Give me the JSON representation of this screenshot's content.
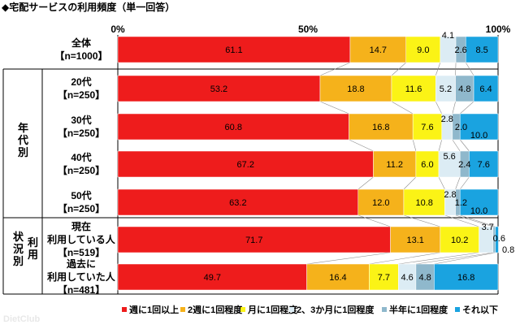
{
  "chart_data": {
    "type": "bar",
    "orientation": "horizontal",
    "stacked": true,
    "title": "◆宅配サービスの利用頻度（単一回答）",
    "xlim": [
      0,
      100
    ],
    "x_ticks": [
      "0%",
      "50%",
      "100%"
    ],
    "grid": false,
    "legend_position": "bottom",
    "groups": [
      {
        "label": "年代別"
      },
      {
        "label": "利用状況別"
      }
    ],
    "categories": [
      {
        "line1": "全体",
        "line2": "【n=1000】"
      },
      {
        "line1": "20代",
        "line2": "【n=250】"
      },
      {
        "line1": "30代",
        "line2": "【n=250】"
      },
      {
        "line1": "40代",
        "line2": "【n=250】"
      },
      {
        "line1": "50代",
        "line2": "【n=250】"
      },
      {
        "line1": "現在",
        "line2": "利用している人",
        "line3": "【n=519】"
      },
      {
        "line1": "過去に",
        "line2": "利用していた人",
        "line3": "【n=481】"
      }
    ],
    "series": [
      {
        "name": "週に1回以上",
        "color": "#ee1c1c",
        "values": [
          61.1,
          53.2,
          60.8,
          67.2,
          63.2,
          71.7,
          49.7
        ]
      },
      {
        "name": "2週に1回程度",
        "color": "#f5b21b",
        "values": [
          14.7,
          18.8,
          16.8,
          11.2,
          12.0,
          13.1,
          16.4
        ]
      },
      {
        "name": "月に1回程度",
        "color": "#fbf316",
        "values": [
          9.0,
          11.6,
          7.6,
          6.0,
          10.8,
          10.2,
          7.7
        ]
      },
      {
        "name": "2、3か月に1回程度",
        "color": "#dcecf4",
        "values": [
          4.1,
          5.2,
          2.8,
          5.6,
          2.8,
          3.7,
          4.6
        ]
      },
      {
        "name": "半年に1回程度",
        "color": "#8fb8cc",
        "values": [
          2.6,
          4.8,
          2.0,
          2.4,
          1.2,
          0.6,
          4.8
        ]
      },
      {
        "name": "それ以下",
        "color": "#1aa3e0",
        "values": [
          8.5,
          6.4,
          10.0,
          7.6,
          10.0,
          0.8,
          16.8
        ]
      }
    ],
    "value_labels": [
      [
        "61.1",
        "14.7",
        "9.0",
        "4.1",
        "2.6",
        "8.5"
      ],
      [
        "53.2",
        "18.8",
        "11.6",
        "5.2",
        "4.8",
        "6.4"
      ],
      [
        "60.8",
        "16.8",
        "7.6",
        "2.8",
        "2.0",
        "10.0"
      ],
      [
        "67.2",
        "11.2",
        "6.0",
        "5.6",
        "2.4",
        "7.6"
      ],
      [
        "63.2",
        "12.0",
        "10.8",
        "2.8",
        "1.2",
        "10.0"
      ],
      [
        "71.7",
        "13.1",
        "10.2",
        "3.7",
        "0.6",
        "0.8"
      ],
      [
        "49.7",
        "16.4",
        "7.7",
        "4.6",
        "4.8",
        "16.8"
      ]
    ],
    "watermark": "DietClub"
  }
}
